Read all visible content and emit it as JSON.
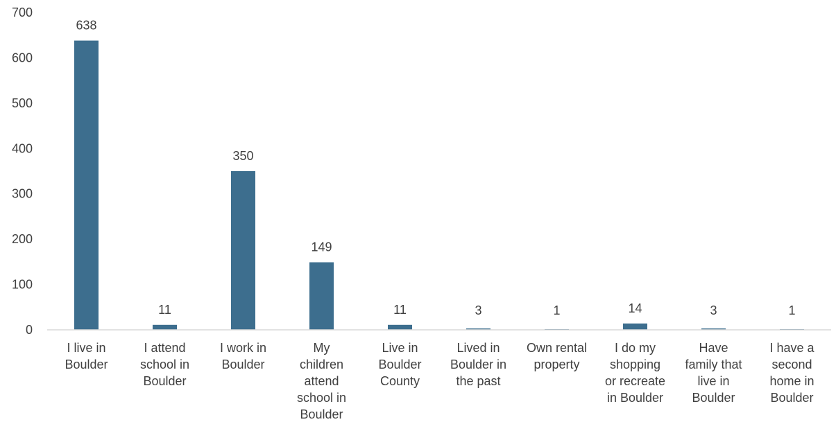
{
  "chart_data": {
    "type": "bar",
    "title": "",
    "xlabel": "",
    "ylabel": "",
    "ylim": [
      0,
      700
    ],
    "yticks": [
      0,
      100,
      200,
      300,
      400,
      500,
      600,
      700
    ],
    "grid": false,
    "legend": "none",
    "bar_color": "#3d6e8e",
    "categories": [
      [
        "I live in",
        "Boulder"
      ],
      [
        "I attend",
        "school in",
        "Boulder"
      ],
      [
        "I work in",
        "Boulder"
      ],
      [
        "My",
        "children",
        "attend",
        "school in",
        "Boulder"
      ],
      [
        "Live in",
        "Boulder",
        "County"
      ],
      [
        "Lived in",
        "Boulder in",
        "the past"
      ],
      [
        "Own rental",
        "property"
      ],
      [
        "I do my",
        "shopping",
        "or recreate",
        "in Boulder"
      ],
      [
        "Have",
        "family that",
        "live in",
        "Boulder"
      ],
      [
        "I have a",
        "second",
        "home in",
        "Boulder"
      ]
    ],
    "values": [
      638,
      11,
      350,
      149,
      11,
      3,
      1,
      14,
      3,
      1
    ]
  }
}
